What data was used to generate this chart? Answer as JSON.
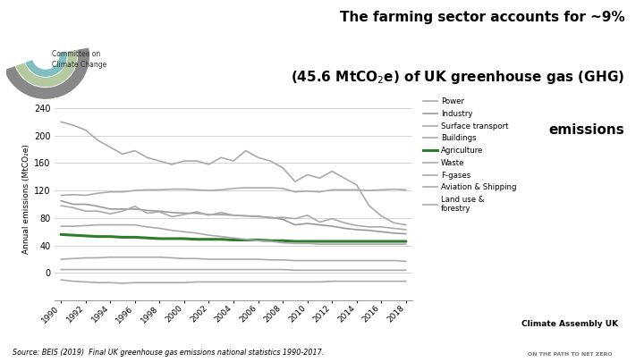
{
  "title_line1": "The farming sector accounts for ~9%",
  "title_line2a": "(45.6 MtCO",
  "title_line2b": "2",
  "title_line2c": "e) of UK greenhouse gas (GHG)",
  "title_line3": "emissions",
  "source": "Source: BEIS (2019)  Final UK greenhouse gas emissions national statistics 1990-2017.",
  "ylabel": "Annual emissions (MtCO₂e)",
  "years": [
    1990,
    1991,
    1992,
    1993,
    1994,
    1995,
    1996,
    1997,
    1998,
    1999,
    2000,
    2001,
    2002,
    2003,
    2004,
    2005,
    2006,
    2007,
    2008,
    2009,
    2010,
    2011,
    2012,
    2013,
    2014,
    2015,
    2016,
    2017,
    2018
  ],
  "series": {
    "Power": [
      220,
      215,
      208,
      193,
      183,
      173,
      178,
      168,
      163,
      158,
      163,
      163,
      158,
      168,
      163,
      178,
      168,
      163,
      153,
      133,
      143,
      138,
      148,
      138,
      128,
      98,
      83,
      73,
      70
    ],
    "Industry": [
      105,
      100,
      100,
      97,
      93,
      93,
      93,
      91,
      90,
      88,
      87,
      87,
      85,
      85,
      84,
      83,
      82,
      81,
      78,
      70,
      72,
      70,
      68,
      65,
      63,
      62,
      60,
      58,
      57
    ],
    "Surface transport": [
      113,
      114,
      113,
      116,
      118,
      118,
      120,
      121,
      121,
      122,
      122,
      121,
      120,
      121,
      123,
      124,
      124,
      124,
      123,
      118,
      119,
      118,
      121,
      121,
      121,
      120,
      121,
      122,
      121
    ],
    "Buildings": [
      98,
      95,
      90,
      90,
      86,
      90,
      97,
      87,
      89,
      82,
      85,
      89,
      84,
      88,
      84,
      83,
      83,
      80,
      81,
      79,
      84,
      74,
      79,
      73,
      69,
      67,
      67,
      65,
      63
    ],
    "Agriculture": [
      56,
      55,
      54,
      53,
      53,
      52,
      52,
      51,
      50,
      50,
      50,
      49,
      49,
      49,
      48,
      48,
      48,
      47,
      47,
      46,
      46,
      46,
      46,
      46,
      46,
      46,
      46,
      46,
      46
    ],
    "Waste": [
      68,
      68,
      69,
      70,
      70,
      70,
      70,
      67,
      65,
      62,
      60,
      58,
      55,
      53,
      51,
      49,
      47,
      46,
      44,
      43,
      43,
      42,
      42,
      42,
      42,
      42,
      42,
      42,
      42
    ],
    "F-gases": [
      20,
      21,
      22,
      22,
      23,
      23,
      23,
      23,
      23,
      22,
      21,
      21,
      20,
      20,
      20,
      20,
      20,
      19,
      19,
      18,
      18,
      18,
      18,
      18,
      18,
      18,
      18,
      18,
      17
    ],
    "Aviation & Shipping": [
      5,
      5,
      5,
      5,
      5,
      5,
      5,
      5,
      5,
      5,
      5,
      5,
      5,
      5,
      5,
      5,
      5,
      5,
      5,
      4,
      4,
      4,
      4,
      4,
      4,
      4,
      4,
      4,
      4
    ],
    "Land use & forestry": [
      -10,
      -12,
      -13,
      -14,
      -14,
      -15,
      -14,
      -14,
      -14,
      -14,
      -14,
      -13,
      -13,
      -13,
      -13,
      -13,
      -13,
      -13,
      -13,
      -13,
      -13,
      -13,
      -12,
      -12,
      -12,
      -12,
      -12,
      -12,
      -12
    ]
  },
  "colors": {
    "Power": "#aaaaaa",
    "Industry": "#999999",
    "Surface transport": "#aaaaaa",
    "Buildings": "#aaaaaa",
    "Agriculture": "#2d7d2d",
    "Waste": "#aaaaaa",
    "F-gases": "#aaaaaa",
    "Aviation & Shipping": "#aaaaaa",
    "Land use & forestry": "#aaaaaa"
  },
  "linewidths": {
    "Power": 1.2,
    "Industry": 1.2,
    "Surface transport": 1.2,
    "Buildings": 1.2,
    "Agriculture": 2.2,
    "Waste": 1.2,
    "F-gases": 1.2,
    "Aviation & Shipping": 1.2,
    "Land use & forestry": 1.2
  },
  "ylim": [
    -40,
    255
  ],
  "yticks": [
    0,
    40,
    80,
    120,
    160,
    200,
    240
  ],
  "xlim": [
    1989.5,
    2018.5
  ],
  "background_color": "#ffffff",
  "legend_names": [
    "Power",
    "Industry",
    "Surface transport",
    "Buildings",
    "Agriculture",
    "Waste",
    "F-gases",
    "Aviation & Shipping",
    "Land use &\nforestry"
  ]
}
